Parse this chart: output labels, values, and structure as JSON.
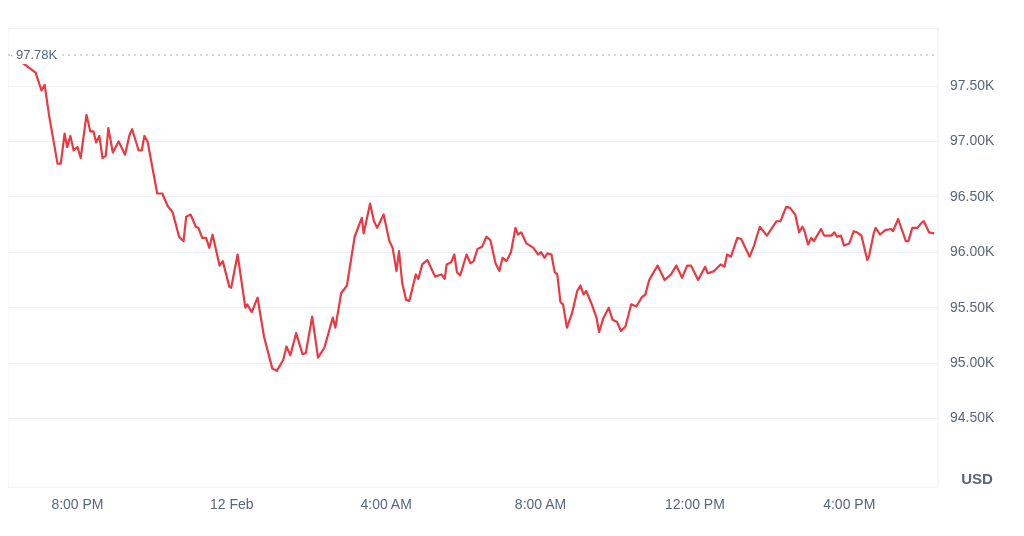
{
  "chart_data": {
    "type": "line",
    "ylabel": "USD",
    "x": [
      "--02-11T18:18",
      "--02-11T18:55",
      "--02-11T19:04",
      "--02-11T19:09",
      "--02-11T19:16",
      "--02-11T19:29",
      "--02-11T19:34",
      "--02-11T19:40",
      "--02-11T19:44",
      "--02-11T19:49",
      "--02-11T19:54",
      "--02-11T20:00",
      "--02-11T20:05",
      "--02-11T20:14",
      "--02-11T20:20",
      "--02-11T20:25",
      "--02-11T20:29",
      "--02-11T20:34",
      "--02-11T20:39",
      "--02-11T20:44",
      "--02-11T20:48",
      "--02-11T20:55",
      "--02-11T21:04",
      "--02-11T21:14",
      "--02-11T21:21",
      "--02-11T21:25",
      "--02-11T21:35",
      "--02-11T21:40",
      "--02-11T21:44",
      "--02-11T21:49",
      "--02-11T22:04",
      "--02-11T22:12",
      "--02-11T22:20",
      "--02-11T22:28",
      "--02-11T22:38",
      "--02-11T22:45",
      "--02-11T22:49",
      "--02-11T22:56",
      "--02-11T23:04",
      "--02-11T23:08",
      "--02-11T23:14",
      "--02-11T23:20",
      "--02-11T23:25",
      "--02-11T23:30",
      "--02-11T23:41",
      "--02-11T23:46",
      "--02-11T23:56",
      "--02-11T23:59",
      "--02-12T00:09",
      "--02-12T00:21",
      "--02-12T00:24",
      "--02-12T00:31",
      "--02-12T00:40",
      "--02-12T00:50",
      "--02-12T01:03",
      "--02-12T01:10",
      "--02-12T01:20",
      "--02-12T01:25",
      "--02-12T01:31",
      "--02-12T01:40",
      "--02-12T01:50",
      "--02-12T01:55",
      "--02-12T02:05",
      "--02-12T02:14",
      "--02-12T02:24",
      "--02-12T02:37",
      "--02-12T02:41",
      "--02-12T02:50",
      "--02-12T02:59",
      "--02-12T03:11",
      "--02-12T03:22",
      "--02-12T03:25",
      "--02-12T03:35",
      "--02-12T03:41",
      "--02-12T03:46",
      "--02-12T03:56",
      "--02-12T04:05",
      "--02-12T04:10",
      "--02-12T04:16",
      "--02-12T04:20",
      "--02-12T04:25",
      "--02-12T04:31",
      "--02-12T04:36",
      "--02-12T04:46",
      "--02-12T04:50",
      "--02-12T04:56",
      "--02-12T05:04",
      "--02-12T05:16",
      "--02-12T05:26",
      "--02-12T05:31",
      "--02-12T05:34",
      "--02-12T05:41",
      "--02-12T05:46",
      "--02-12T05:50",
      "--02-12T05:55",
      "--02-12T06:05",
      "--02-12T06:11",
      "--02-12T06:16",
      "--02-12T06:22",
      "--02-12T06:29",
      "--02-12T06:36",
      "--02-12T06:42",
      "--02-12T06:50",
      "--02-12T06:56",
      "--02-12T07:01",
      "--02-12T07:07",
      "--02-12T07:14",
      "--02-12T07:21",
      "--02-12T07:25",
      "--02-12T07:30",
      "--02-12T07:38",
      "--02-12T07:49",
      "--02-12T07:56",
      "--02-12T08:01",
      "--02-12T08:06",
      "--02-12T08:11",
      "--02-12T08:17",
      "--02-12T08:22",
      "--02-12T08:26",
      "--02-12T08:31",
      "--02-12T08:35",
      "--02-12T08:41",
      "--02-12T08:49",
      "--02-12T08:57",
      "--02-12T09:02",
      "--02-12T09:07",
      "--02-12T09:11",
      "--02-12T09:19",
      "--02-12T09:27",
      "--02-12T09:31",
      "--02-12T09:38",
      "--02-12T09:46",
      "--02-12T09:52",
      "--02-12T09:59",
      "--02-12T10:05",
      "--02-12T10:12",
      "--02-12T10:21",
      "--02-12T10:29",
      "--02-12T10:37",
      "--02-12T10:43",
      "--02-12T10:49",
      "--02-12T10:54",
      "--02-12T11:02",
      "--02-12T11:13",
      "--02-12T11:23",
      "--02-12T11:31",
      "--02-12T11:40",
      "--02-12T11:48",
      "--02-12T11:54",
      "--02-12T12:05",
      "--02-12T12:16",
      "--02-12T12:20",
      "--02-12T12:30",
      "--02-12T12:40",
      "--02-12T12:46",
      "--02-12T12:50",
      "--02-12T12:56",
      "--02-12T13:06",
      "--02-12T13:12",
      "--02-12T13:25",
      "--02-12T13:32",
      "--02-12T13:35",
      "--02-12T13:41",
      "--02-12T13:52",
      "--02-12T14:00",
      "--02-12T14:07",
      "--02-12T14:13",
      "--02-12T14:22",
      "--02-12T14:28",
      "--02-12T14:36",
      "--02-12T14:42",
      "--02-12T14:47",
      "--02-12T14:50",
      "--02-12T14:56",
      "--02-12T15:01",
      "--02-12T15:05",
      "--02-12T15:16",
      "--02-12T15:21",
      "--02-12T15:32",
      "--02-12T15:37",
      "--02-12T15:41",
      "--02-12T15:47",
      "--02-12T15:52",
      "--02-12T16:00",
      "--02-12T16:07",
      "--02-12T16:12",
      "--02-12T16:19",
      "--02-12T16:28",
      "--02-12T16:31",
      "--02-12T16:38",
      "--02-12T16:41",
      "--02-12T16:48",
      "--02-12T16:56",
      "--02-12T17:05",
      "--02-12T17:08",
      "--02-12T17:16",
      "--02-12T17:28",
      "--02-12T17:32",
      "--02-12T17:38",
      "--02-12T17:46",
      "--02-12T17:53",
      "--02-12T17:56",
      "--02-12T18:04",
      "--02-12T18:12"
    ],
    "series": [
      {
        "color": "#ea3943",
        "values": [
          97780,
          97620,
          97460,
          97510,
          97230,
          96800,
          96800,
          97070,
          96950,
          97050,
          96920,
          96950,
          96850,
          97240,
          97090,
          97090,
          96990,
          97050,
          96850,
          96870,
          97120,
          96900,
          97000,
          96880,
          97060,
          97110,
          96920,
          96920,
          97050,
          97000,
          96530,
          96530,
          96420,
          96360,
          96140,
          96100,
          96320,
          96340,
          96230,
          96220,
          96130,
          96130,
          96040,
          96160,
          95880,
          95920,
          95690,
          95680,
          95980,
          95500,
          95530,
          95460,
          95590,
          95240,
          94950,
          94930,
          95030,
          95150,
          95070,
          95270,
          95080,
          95090,
          95420,
          95050,
          95140,
          95410,
          95320,
          95630,
          95700,
          96140,
          96310,
          96170,
          96440,
          96280,
          96220,
          96340,
          96100,
          96040,
          95830,
          96010,
          95720,
          95570,
          95560,
          95800,
          95760,
          95890,
          95930,
          95780,
          95800,
          95760,
          95890,
          95910,
          95980,
          95820,
          95790,
          95980,
          95900,
          95920,
          96030,
          96050,
          96140,
          96110,
          95900,
          95830,
          95950,
          95920,
          96000,
          96220,
          96160,
          96180,
          96080,
          96040,
          95980,
          96000,
          95950,
          95990,
          95980,
          95820,
          95800,
          95550,
          95530,
          95320,
          95450,
          95650,
          95700,
          95620,
          95650,
          95540,
          95410,
          95280,
          95410,
          95500,
          95390,
          95370,
          95290,
          95330,
          95530,
          95510,
          95590,
          95620,
          95750,
          95800,
          95880,
          95750,
          95800,
          95880,
          95770,
          95880,
          95880,
          95750,
          95870,
          95810,
          95830,
          95890,
          95870,
          95980,
          95960,
          96130,
          96120,
          95960,
          96060,
          96120,
          96230,
          96150,
          96220,
          96280,
          96280,
          96410,
          96400,
          96340,
          96180,
          96230,
          96200,
          96070,
          96130,
          96100,
          96210,
          96150,
          96150,
          96180,
          96140,
          96150,
          96060,
          96080,
          96190,
          96180,
          96150,
          95930,
          95970,
          96170,
          96220,
          96160,
          96200,
          96210,
          96190,
          96300,
          96100,
          96100,
          96220,
          96220,
          96270,
          96280,
          96180,
          96170
        ]
      }
    ],
    "xlim": [
      "--02-11T18:12",
      "--02-12T18:18"
    ],
    "xticks": [
      {
        "value": "--02-11T20:00",
        "label": "8:00 PM"
      },
      {
        "value": "--02-12",
        "label": "12 Feb"
      },
      {
        "value": "--02-12T04:00",
        "label": "4:00 AM"
      },
      {
        "value": "--02-12T08:00",
        "label": "8:00 AM"
      },
      {
        "value": "--02-12T12:00",
        "label": "12:00 PM"
      },
      {
        "value": "--02-12T16:00",
        "label": "4:00 PM"
      }
    ],
    "ylim": [
      93880,
      98020
    ],
    "yticks": [
      {
        "value": 94500,
        "label": "94.50K"
      },
      {
        "value": 95000,
        "label": "95.00K"
      },
      {
        "value": 95500,
        "label": "95.50K"
      },
      {
        "value": 96000,
        "label": "96.00K"
      },
      {
        "value": 96500,
        "label": "96.50K"
      },
      {
        "value": 97000,
        "label": "97.00K"
      },
      {
        "value": 97500,
        "label": "97.50K"
      }
    ],
    "ref_lines": [
      {
        "axis": "y",
        "value": 97780,
        "label": "97.78K",
        "color": "#a6b0c3",
        "line_style": "dotted"
      }
    ],
    "grid": "y",
    "legend": false,
    "marker": "none",
    "line_style": "solid"
  }
}
